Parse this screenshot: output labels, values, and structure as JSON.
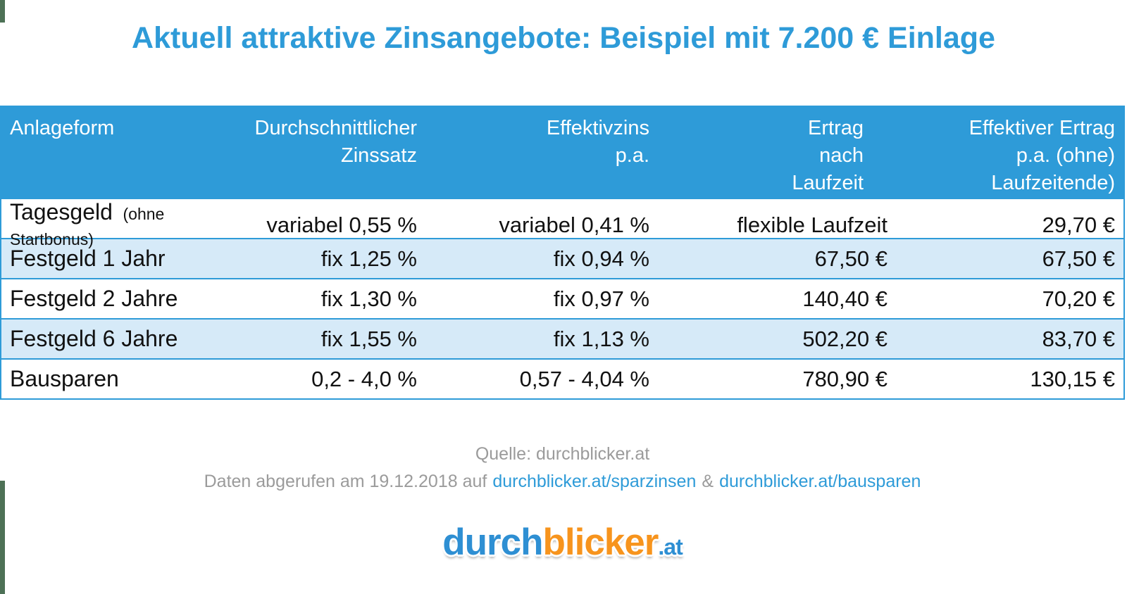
{
  "title": "Aktuell attraktive Zinsangebote: Beispiel mit 7.200 € Einlage",
  "colors": {
    "accent_blue": "#2e9bd8",
    "row_alt_blue": "#d6eaf8",
    "footer_gray": "#9b9b9b",
    "logo_orange": "#f7941d",
    "logo_blue": "#2e8fd3",
    "green_mark": "#4d7156"
  },
  "chart_data": {
    "type": "table",
    "title": "Aktuell attraktive Zinsangebote: Beispiel mit 7.200 € Einlage",
    "columns": [
      "Anlageform",
      "Durchschnittlicher Zinssatz",
      "Effektivzins p.a.",
      "Ertrag nach Laufzeit",
      "Effektiver Ertrag p.a. (ohne) Laufzeitende)"
    ],
    "header_lines": {
      "c1": [
        "Anlageform"
      ],
      "c2": [
        "Durchschnittlicher",
        "Zinssatz"
      ],
      "c3": [
        "Effektivzins",
        "p.a."
      ],
      "c4": [
        "Ertrag",
        "nach",
        "Laufzeit"
      ],
      "c5": [
        "Effektiver Ertrag",
        "p.a. (ohne)",
        "Laufzeitende)"
      ]
    },
    "rows": [
      {
        "name": "Tagesgeld",
        "note": "(ohne Startbonus)",
        "avg_rate": "variabel 0,55 %",
        "eff_rate": "variabel 0,41 %",
        "yield_term": "flexible Laufzeit",
        "eff_yield": "29,70 €"
      },
      {
        "name": "Festgeld 1 Jahr",
        "avg_rate": "fix 1,25 %",
        "eff_rate": "fix 0,94 %",
        "yield_term": "67,50 €",
        "eff_yield": "67,50 €"
      },
      {
        "name": "Festgeld 2 Jahre",
        "avg_rate": "fix 1,30 %",
        "eff_rate": "fix 0,97 %",
        "yield_term": "140,40 €",
        "eff_yield": "70,20 €"
      },
      {
        "name": "Festgeld 6 Jahre",
        "avg_rate": "fix 1,55 %",
        "eff_rate": "fix 1,13 %",
        "yield_term": "502,20 €",
        "eff_yield": "83,70 €"
      },
      {
        "name": "Bausparen",
        "avg_rate": "0,2 - 4,0 %",
        "eff_rate": "0,57 - 4,04 %",
        "yield_term": "780,90 €",
        "eff_yield": "130,15 €"
      }
    ],
    "deposit_example": "7.200 €"
  },
  "footer": {
    "source": "Quelle: durchblicker.at",
    "retrieved_prefix": "Daten abgerufen am 19.12.2018 auf",
    "link1": "durchblicker.at/sparzinsen",
    "amp": "&",
    "link2": "durchblicker.at/bausparen"
  },
  "logo": {
    "part1": "durch",
    "part2": "blicker",
    "part3": ".at"
  }
}
